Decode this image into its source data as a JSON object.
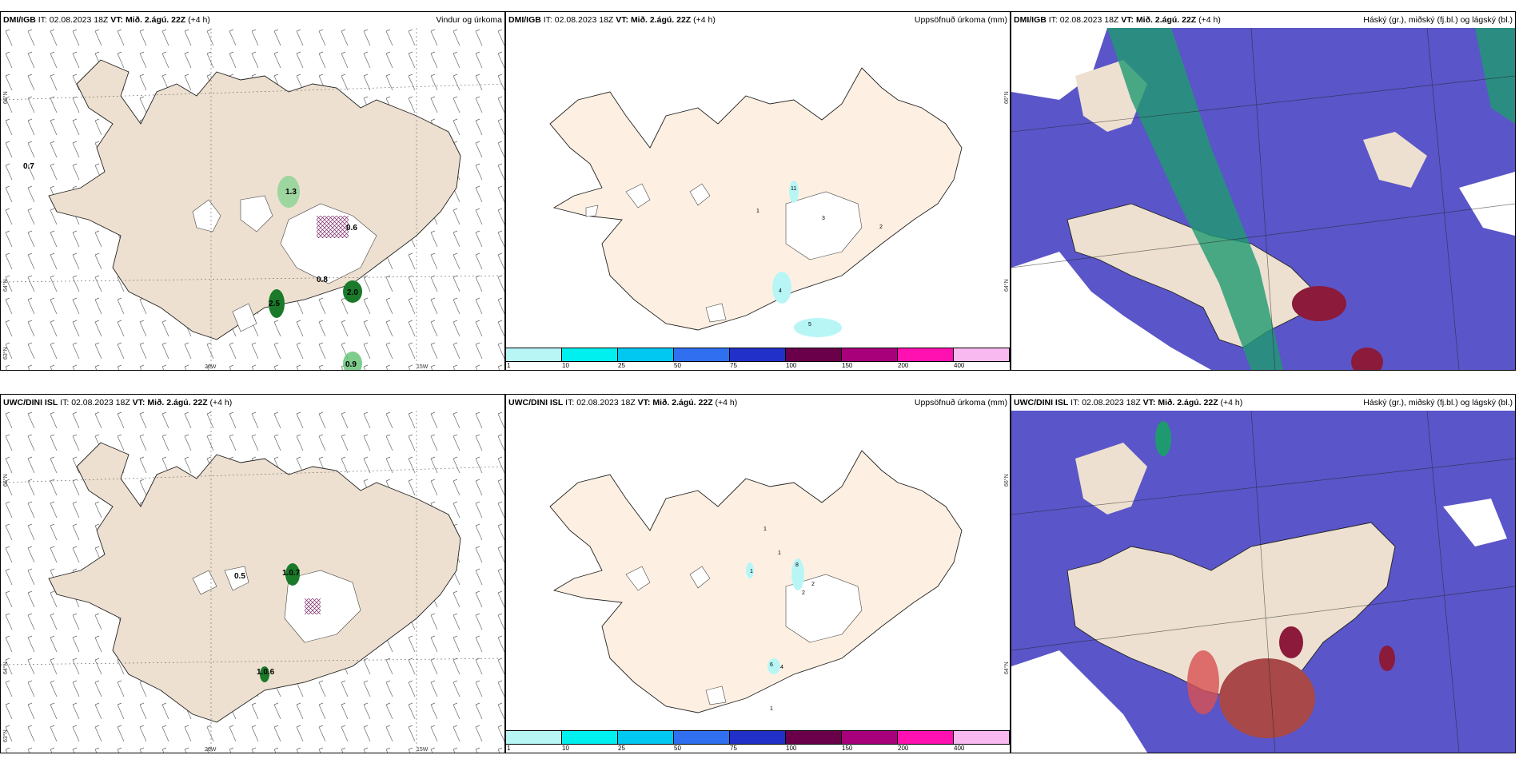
{
  "panels": [
    {
      "model": "DMI/IGB",
      "it_label": "IT:",
      "it": "02.08.2023 18Z",
      "vt_label": "VT:",
      "vt": "Mið. 2.ágú. 22Z",
      "lead": "(+4 h)",
      "title": "Vindur og úrkoma",
      "values": [
        "0.7",
        "1.3",
        "0.6",
        "0.8",
        "2.5",
        "2.0",
        "0.9"
      ],
      "axis": {
        "lat66": "66°N",
        "lat64": "64°N",
        "lat63": "63°N",
        "lon20": "20W",
        "lon15": "15W"
      }
    },
    {
      "model": "DMI/IGB",
      "it_label": "IT:",
      "it": "02.08.2023 18Z",
      "vt_label": "VT:",
      "vt": "Mið. 2.ágú. 22Z",
      "lead": "(+4 h)",
      "title": "Uppsöfnuð úrkoma (mm)",
      "values": [
        "11",
        "1",
        "3",
        "2",
        "4",
        "5",
        "4"
      ],
      "axis": {
        "lat66": "66°N",
        "lat64": "64°N"
      }
    },
    {
      "model": "DMI/IGB",
      "it_label": "IT:",
      "it": "02.08.2023 18Z",
      "vt_label": "VT:",
      "vt": "Mið. 2.ágú. 22Z",
      "lead": "(+4 h)",
      "title": "Háský (gr.), miðský (fj.bl.) og lágský (bl.)"
    },
    {
      "model": "UWC/DINI ISL",
      "it_label": "IT:",
      "it": "02.08.2023 18Z",
      "vt_label": "VT:",
      "vt": "Mið. 2.ágú. 22Z",
      "lead": "(+4 h)",
      "title": "",
      "values": [
        "0.5",
        "1.0.7",
        "1.0.6"
      ],
      "axis": {
        "lat66": "66°N",
        "lat64": "64°N",
        "lat63": "63°N",
        "lon20": "20W",
        "lon15": "15W"
      }
    },
    {
      "model": "UWC/DINI ISL",
      "it_label": "IT:",
      "it": "02.08.2023 18Z",
      "vt_label": "VT:",
      "vt": "Mið. 2.ágú. 22Z",
      "lead": "(+4 h)",
      "title": "Uppsöfnuð úrkoma (mm)",
      "values": [
        "1",
        "1",
        "8",
        "1",
        "2",
        "2",
        "6",
        "4",
        "1"
      ],
      "axis": {
        "lat66": "66°N",
        "lat64": "64°N"
      }
    },
    {
      "model": "UWC/DINI ISL",
      "it_label": "IT:",
      "it": "02.08.2023 18Z",
      "vt_label": "VT:",
      "vt": "Mið. 2.ágú. 22Z",
      "lead": "(+4 h)",
      "title": "Háský (gr.), miðský (fj.bl.) og lágský (bl.)"
    }
  ],
  "precip_scale": {
    "labels": [
      "1",
      "10",
      "25",
      "50",
      "75",
      "100",
      "150",
      "200",
      "400"
    ],
    "colors": [
      "#b8f6f6",
      "#00f0f0",
      "#00c8f0",
      "#3070f0",
      "#2030c8",
      "#6a004a",
      "#a8007a",
      "#ff10b0",
      "#f8b8f0"
    ]
  },
  "colors": {
    "land": "#ede0d0",
    "land_precip": "#fdf0e2",
    "cloud_mid": "#5a55c8",
    "cloud_high": "#1f9a70",
    "cloud_low_red": "#8c1a3a",
    "precip_green": "#1a7a2a"
  }
}
